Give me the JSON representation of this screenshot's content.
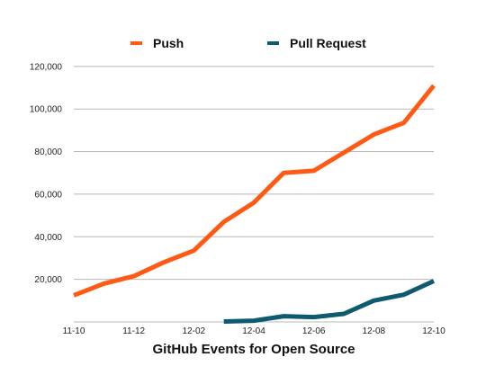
{
  "chart_data": {
    "type": "line",
    "title": "GitHub Events for Open Source",
    "xlabel": "",
    "ylabel": "",
    "x": [
      "11-10",
      "11-11",
      "11-12",
      "12-01",
      "12-02",
      "12-03",
      "12-04",
      "12-05",
      "12-06",
      "12-07",
      "12-08",
      "12-09",
      "12-10"
    ],
    "x_tick_labels": [
      "11-10",
      "11-12",
      "12-02",
      "12-04",
      "12-06",
      "12-08",
      "12-10"
    ],
    "y_tick_labels": [
      "20,000",
      "40,000",
      "60,000",
      "80,000",
      "100,000",
      "120,000"
    ],
    "ylim": [
      0,
      125000
    ],
    "grid": true,
    "legend_position": "top",
    "series": [
      {
        "name": "Push",
        "color": "#ff5a14",
        "values": [
          12500,
          18000,
          21500,
          28000,
          33500,
          47000,
          56000,
          70000,
          71000,
          79500,
          88000,
          93500,
          111000
        ]
      },
      {
        "name": "Pull Request",
        "color": "#0e5a6e",
        "values": [
          null,
          null,
          null,
          null,
          null,
          200,
          600,
          2700,
          2300,
          3800,
          10000,
          12800,
          19200
        ]
      }
    ]
  }
}
